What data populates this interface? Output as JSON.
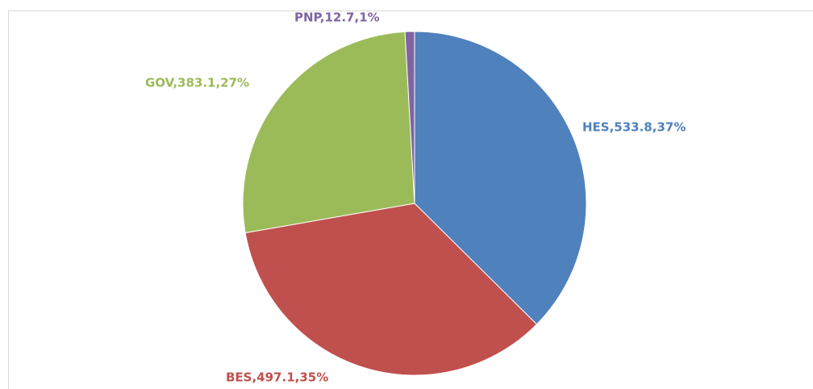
{
  "chart_data": {
    "type": "pie",
    "categories": [
      "HES",
      "BES",
      "GOV",
      "PNP"
    ],
    "values": [
      533.8,
      497.1,
      383.1,
      12.7
    ],
    "value_labels": [
      "HES,533.8,37%",
      "BES,497.1,35%",
      "GOV,383.1,27%",
      "PNP,12.7,1%"
    ],
    "colors": [
      "#4f81bd",
      "#c0504d",
      "#9bbb59",
      "#8064a2"
    ]
  }
}
